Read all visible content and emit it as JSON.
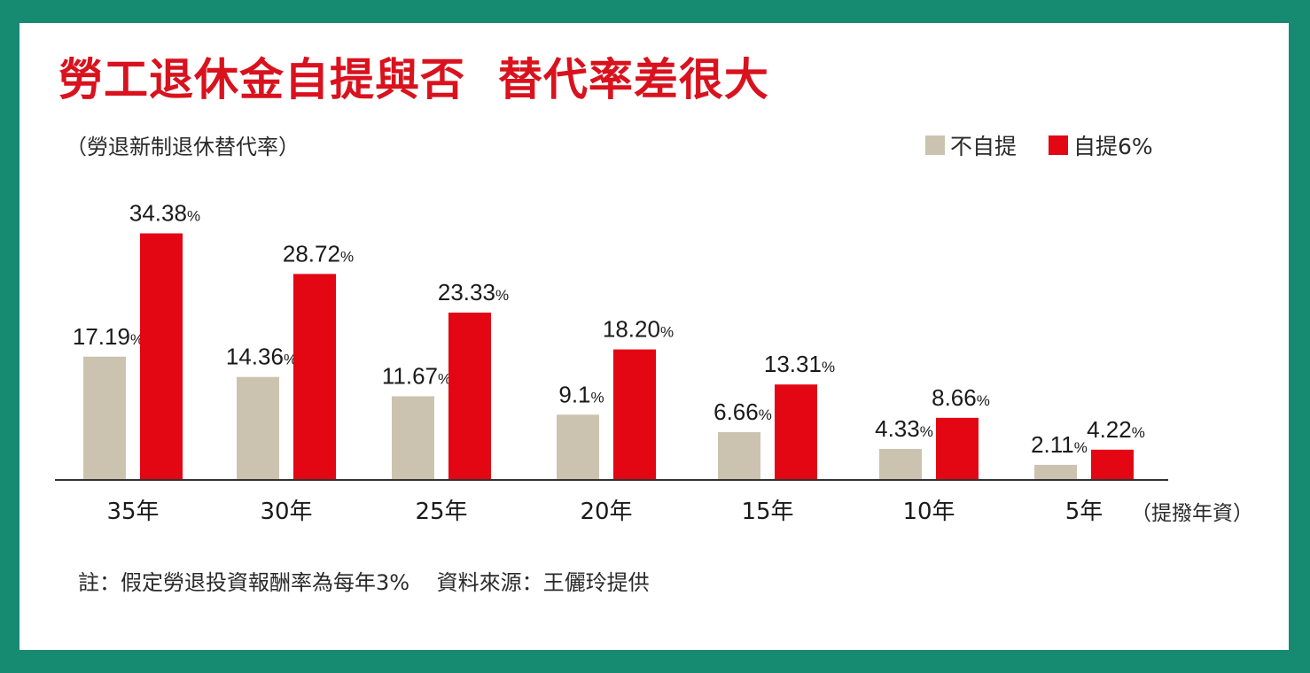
{
  "title": "勞工退休金自提與否  替代率差很大",
  "subtitle": "（勞退新制退休替代率）",
  "legend": [
    {
      "label": "不自提",
      "color": "#cbc3b0"
    },
    {
      "label": "自提6%",
      "color": "#e30613"
    }
  ],
  "x_unit_label": "（提撥年資）",
  "note": "註：假定勞退投資報酬率為每年3%    資料來源：王儷玲提供",
  "chart_data": {
    "type": "bar",
    "categories": [
      "35年",
      "30年",
      "25年",
      "20年",
      "15年",
      "10年",
      "5年"
    ],
    "series": [
      {
        "name": "不自提",
        "values": [
          17.19,
          14.36,
          11.67,
          9.1,
          6.66,
          4.33,
          2.11
        ],
        "labels": [
          "17.19",
          "14.36",
          "11.67",
          "9.1",
          "6.66",
          "4.33",
          "2.11"
        ]
      },
      {
        "name": "自提6%",
        "values": [
          34.38,
          28.72,
          23.33,
          18.2,
          13.31,
          8.66,
          4.22
        ],
        "labels": [
          "34.38",
          "28.72",
          "23.33",
          "18.20",
          "13.31",
          "8.66",
          "4.22"
        ]
      }
    ],
    "value_suffix": "%",
    "ylim": [
      0,
      36
    ]
  }
}
